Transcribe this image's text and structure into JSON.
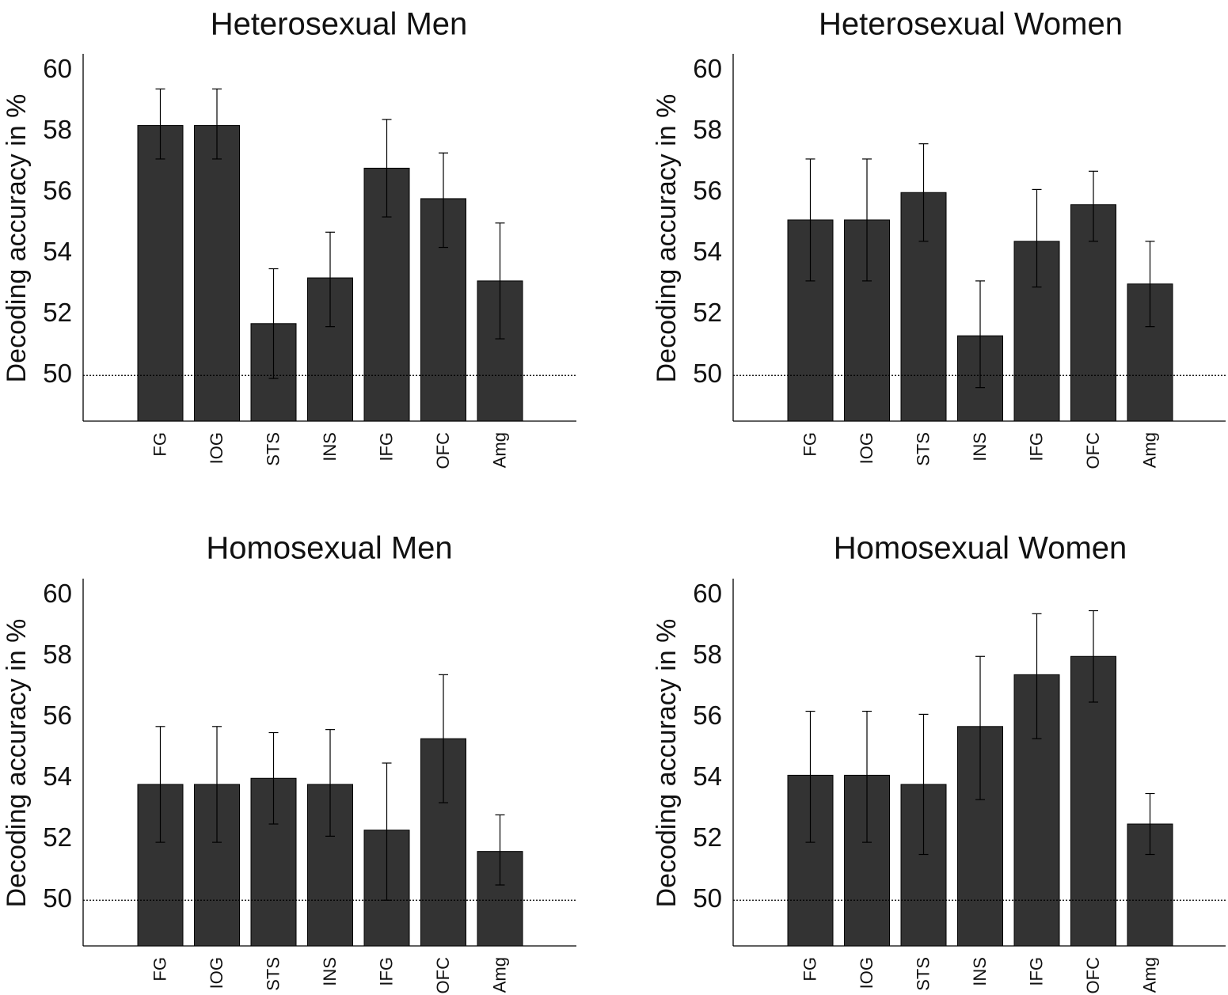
{
  "chart_data": [
    {
      "type": "bar",
      "title": "Heterosexual Men",
      "ylabel": "Decoding accuracy in %",
      "xlabel": "",
      "categories": [
        "FG",
        "IOG",
        "STS",
        "INS",
        "IFG",
        "OFC",
        "Amg"
      ],
      "values": [
        58.2,
        58.2,
        51.7,
        53.2,
        56.8,
        55.8,
        53.1
      ],
      "error_low": [
        57.1,
        57.1,
        49.9,
        51.6,
        55.2,
        54.2,
        51.2
      ],
      "error_high": [
        59.4,
        59.4,
        53.5,
        54.7,
        58.4,
        57.3,
        55.0
      ],
      "chance_level": 50,
      "ylim": [
        48.5,
        60.5
      ],
      "yticks": [
        50,
        52,
        54,
        56,
        58,
        60
      ],
      "grid": false
    },
    {
      "type": "bar",
      "title": "Heterosexual Women",
      "ylabel": "Decoding accuracy in %",
      "xlabel": "",
      "categories": [
        "FG",
        "IOG",
        "STS",
        "INS",
        "IFG",
        "OFC",
        "Amg"
      ],
      "values": [
        55.1,
        55.1,
        56.0,
        51.3,
        54.4,
        55.6,
        53.0
      ],
      "error_low": [
        53.1,
        53.1,
        54.4,
        49.6,
        52.9,
        54.4,
        51.6
      ],
      "error_high": [
        57.1,
        57.1,
        57.6,
        53.1,
        56.1,
        56.7,
        54.4
      ],
      "chance_level": 50,
      "ylim": [
        48.5,
        60.5
      ],
      "yticks": [
        50,
        52,
        54,
        56,
        58,
        60
      ],
      "grid": false
    },
    {
      "type": "bar",
      "title": "Homosexual Men",
      "ylabel": "Decoding accuracy in %",
      "xlabel": "",
      "categories": [
        "FG",
        "IOG",
        "STS",
        "INS",
        "IFG",
        "OFC",
        "Amg"
      ],
      "values": [
        53.8,
        53.8,
        54.0,
        53.8,
        52.3,
        55.3,
        51.6
      ],
      "error_low": [
        51.9,
        51.9,
        52.5,
        52.1,
        50.0,
        53.2,
        50.5
      ],
      "error_high": [
        55.7,
        55.7,
        55.5,
        55.6,
        54.5,
        57.4,
        52.8
      ],
      "chance_level": 50,
      "ylim": [
        48.5,
        60.5
      ],
      "yticks": [
        50,
        52,
        54,
        56,
        58,
        60
      ],
      "grid": false
    },
    {
      "type": "bar",
      "title": "Homosexual Women",
      "ylabel": "Decoding accuracy in %",
      "xlabel": "",
      "categories": [
        "FG",
        "IOG",
        "STS",
        "INS",
        "IFG",
        "OFC",
        "Amg"
      ],
      "values": [
        54.1,
        54.1,
        53.8,
        55.7,
        57.4,
        58.0,
        52.5
      ],
      "error_low": [
        51.9,
        51.9,
        51.5,
        53.3,
        55.3,
        56.5,
        51.5
      ],
      "error_high": [
        56.2,
        56.2,
        56.1,
        58.0,
        59.4,
        59.5,
        53.5
      ],
      "chance_level": 50,
      "ylim": [
        48.5,
        60.5
      ],
      "yticks": [
        50,
        52,
        54,
        56,
        58,
        60
      ],
      "grid": false
    }
  ],
  "colors": {
    "bar_fill": "#333333",
    "bar_stroke": "#000000",
    "axis": "#000000",
    "text": "#111111",
    "background": "#ffffff"
  }
}
